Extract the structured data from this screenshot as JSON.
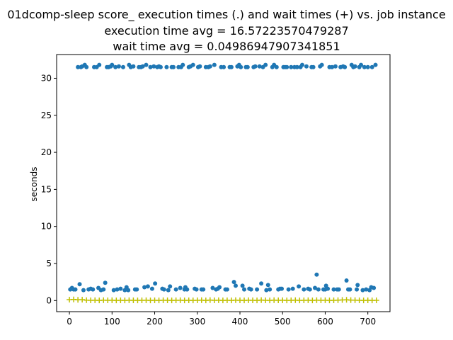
{
  "chart_data": {
    "type": "scatter",
    "title_lines": [
      "01dcomp-sleep score_ execution times (.) and wait times (+) vs. job instance",
      "execution time avg = 16.57223570479287",
      "wait time avg = 0.04986947907341851"
    ],
    "xlabel": "",
    "ylabel": "seconds",
    "xlim": [
      -30,
      752
    ],
    "ylim": [
      -1.5,
      33.2
    ],
    "xticks": [
      0,
      100,
      200,
      300,
      400,
      500,
      600,
      700
    ],
    "yticks": [
      0,
      5,
      10,
      15,
      20,
      25,
      30
    ],
    "grid": false,
    "legend": "none",
    "series": [
      {
        "marker": "dot",
        "color": "#1f77b4",
        "points": [
          [
            2,
            1.5
          ],
          [
            6,
            1.7
          ],
          [
            10,
            1.5
          ],
          [
            14,
            1.5
          ],
          [
            20,
            31.5
          ],
          [
            24,
            2.2
          ],
          [
            27,
            31.5
          ],
          [
            30,
            31.6
          ],
          [
            33,
            1.4
          ],
          [
            36,
            31.8
          ],
          [
            40,
            31.5
          ],
          [
            45,
            1.5
          ],
          [
            50,
            1.6
          ],
          [
            55,
            1.5
          ],
          [
            58,
            31.5
          ],
          [
            64,
            31.5
          ],
          [
            68,
            1.7
          ],
          [
            70,
            31.8
          ],
          [
            74,
            1.4
          ],
          [
            80,
            1.5
          ],
          [
            84,
            2.4
          ],
          [
            88,
            31.5
          ],
          [
            92,
            31.5
          ],
          [
            97,
            31.6
          ],
          [
            100,
            31.8
          ],
          [
            104,
            1.4
          ],
          [
            108,
            31.5
          ],
          [
            112,
            1.5
          ],
          [
            116,
            31.6
          ],
          [
            120,
            1.6
          ],
          [
            126,
            31.5
          ],
          [
            130,
            1.4
          ],
          [
            134,
            1.8
          ],
          [
            138,
            1.4
          ],
          [
            140,
            31.8
          ],
          [
            144,
            31.5
          ],
          [
            150,
            31.6
          ],
          [
            154,
            1.5
          ],
          [
            158,
            1.5
          ],
          [
            163,
            31.5
          ],
          [
            168,
            31.5
          ],
          [
            172,
            31.6
          ],
          [
            176,
            1.8
          ],
          [
            180,
            31.8
          ],
          [
            184,
            1.9
          ],
          [
            190,
            31.5
          ],
          [
            194,
            1.6
          ],
          [
            198,
            31.6
          ],
          [
            201,
            2.3
          ],
          [
            206,
            31.5
          ],
          [
            210,
            31.6
          ],
          [
            214,
            31.5
          ],
          [
            218,
            1.6
          ],
          [
            222,
            1.5
          ],
          [
            228,
            31.5
          ],
          [
            232,
            1.4
          ],
          [
            236,
            1.9
          ],
          [
            240,
            31.5
          ],
          [
            244,
            31.5
          ],
          [
            250,
            1.5
          ],
          [
            256,
            31.5
          ],
          [
            260,
            1.7
          ],
          [
            262,
            31.5
          ],
          [
            266,
            31.8
          ],
          [
            270,
            1.5
          ],
          [
            272,
            1.8
          ],
          [
            276,
            1.5
          ],
          [
            280,
            31.5
          ],
          [
            284,
            31.6
          ],
          [
            290,
            31.8
          ],
          [
            294,
            1.6
          ],
          [
            298,
            1.5
          ],
          [
            302,
            31.5
          ],
          [
            306,
            31.6
          ],
          [
            310,
            1.5
          ],
          [
            314,
            1.5
          ],
          [
            320,
            31.5
          ],
          [
            326,
            31.5
          ],
          [
            330,
            31.6
          ],
          [
            336,
            1.7
          ],
          [
            340,
            31.8
          ],
          [
            344,
            1.5
          ],
          [
            348,
            1.6
          ],
          [
            352,
            1.8
          ],
          [
            356,
            31.5
          ],
          [
            362,
            31.5
          ],
          [
            366,
            1.5
          ],
          [
            370,
            1.5
          ],
          [
            376,
            31.5
          ],
          [
            380,
            31.5
          ],
          [
            386,
            2.5
          ],
          [
            390,
            2.0
          ],
          [
            394,
            31.6
          ],
          [
            398,
            31.8
          ],
          [
            402,
            31.5
          ],
          [
            406,
            2.0
          ],
          [
            410,
            1.5
          ],
          [
            414,
            31.5
          ],
          [
            418,
            31.5
          ],
          [
            422,
            1.6
          ],
          [
            426,
            1.5
          ],
          [
            432,
            31.5
          ],
          [
            436,
            31.6
          ],
          [
            440,
            1.5
          ],
          [
            446,
            31.6
          ],
          [
            450,
            2.3
          ],
          [
            454,
            31.5
          ],
          [
            460,
            31.8
          ],
          [
            462,
            1.4
          ],
          [
            466,
            2.1
          ],
          [
            470,
            1.5
          ],
          [
            476,
            31.5
          ],
          [
            480,
            31.8
          ],
          [
            486,
            31.5
          ],
          [
            490,
            1.5
          ],
          [
            494,
            1.6
          ],
          [
            498,
            1.6
          ],
          [
            502,
            31.5
          ],
          [
            506,
            31.5
          ],
          [
            510,
            31.5
          ],
          [
            514,
            1.5
          ],
          [
            520,
            31.5
          ],
          [
            524,
            1.6
          ],
          [
            528,
            31.5
          ],
          [
            534,
            31.5
          ],
          [
            538,
            1.9
          ],
          [
            542,
            31.5
          ],
          [
            546,
            31.8
          ],
          [
            550,
            1.5
          ],
          [
            556,
            31.6
          ],
          [
            560,
            1.6
          ],
          [
            564,
            1.5
          ],
          [
            568,
            31.5
          ],
          [
            572,
            31.5
          ],
          [
            576,
            1.7
          ],
          [
            580,
            3.5
          ],
          [
            584,
            1.5
          ],
          [
            588,
            31.6
          ],
          [
            592,
            31.8
          ],
          [
            596,
            1.5
          ],
          [
            600,
            1.5
          ],
          [
            602,
            2.0
          ],
          [
            606,
            1.6
          ],
          [
            610,
            31.5
          ],
          [
            616,
            31.5
          ],
          [
            620,
            1.5
          ],
          [
            624,
            31.6
          ],
          [
            628,
            1.5
          ],
          [
            632,
            1.5
          ],
          [
            636,
            31.5
          ],
          [
            642,
            31.6
          ],
          [
            646,
            31.5
          ],
          [
            650,
            2.7
          ],
          [
            654,
            1.5
          ],
          [
            658,
            1.5
          ],
          [
            662,
            31.8
          ],
          [
            666,
            31.5
          ],
          [
            670,
            31.6
          ],
          [
            674,
            1.5
          ],
          [
            676,
            2.1
          ],
          [
            680,
            31.5
          ],
          [
            684,
            31.8
          ],
          [
            688,
            1.4
          ],
          [
            692,
            31.5
          ],
          [
            696,
            1.5
          ],
          [
            700,
            31.5
          ],
          [
            704,
            1.4
          ],
          [
            708,
            1.8
          ],
          [
            710,
            31.5
          ],
          [
            714,
            1.7
          ],
          [
            718,
            31.8
          ]
        ]
      },
      {
        "marker": "plus",
        "color": "#bfbf00",
        "points": [
          [
            0,
            0.12
          ],
          [
            10,
            0.15
          ],
          [
            20,
            0.1
          ],
          [
            30,
            0.12
          ],
          [
            40,
            0.05
          ],
          [
            50,
            0.03
          ],
          [
            60,
            0.04
          ],
          [
            70,
            0.02
          ],
          [
            80,
            0.05
          ],
          [
            90,
            0.03
          ],
          [
            100,
            0.04
          ],
          [
            110,
            0.02
          ],
          [
            120,
            0.03
          ],
          [
            130,
            0.02
          ],
          [
            140,
            0.04
          ],
          [
            150,
            0.03
          ],
          [
            160,
            0.02
          ],
          [
            170,
            0.03
          ],
          [
            180,
            0.04
          ],
          [
            190,
            0.02
          ],
          [
            200,
            0.03
          ],
          [
            210,
            0.02
          ],
          [
            220,
            0.04
          ],
          [
            230,
            0.03
          ],
          [
            240,
            0.02
          ],
          [
            250,
            0.03
          ],
          [
            260,
            0.04
          ],
          [
            270,
            0.02
          ],
          [
            280,
            0.03
          ],
          [
            290,
            0.02
          ],
          [
            300,
            0.03
          ],
          [
            310,
            0.05
          ],
          [
            320,
            0.02
          ],
          [
            330,
            0.06
          ],
          [
            340,
            0.03
          ],
          [
            350,
            0.04
          ],
          [
            360,
            0.02
          ],
          [
            370,
            0.03
          ],
          [
            380,
            0.02
          ],
          [
            390,
            0.05
          ],
          [
            400,
            0.03
          ],
          [
            410,
            0.02
          ],
          [
            420,
            0.04
          ],
          [
            430,
            0.03
          ],
          [
            440,
            0.02
          ],
          [
            450,
            0.06
          ],
          [
            460,
            0.03
          ],
          [
            470,
            0.02
          ],
          [
            480,
            0.05
          ],
          [
            490,
            0.03
          ],
          [
            500,
            0.04
          ],
          [
            510,
            0.02
          ],
          [
            520,
            0.03
          ],
          [
            530,
            0.05
          ],
          [
            540,
            0.02
          ],
          [
            550,
            0.03
          ],
          [
            560,
            0.04
          ],
          [
            570,
            0.02
          ],
          [
            580,
            0.05
          ],
          [
            590,
            0.03
          ],
          [
            600,
            0.04
          ],
          [
            610,
            0.02
          ],
          [
            620,
            0.03
          ],
          [
            630,
            0.05
          ],
          [
            640,
            0.08
          ],
          [
            650,
            0.1
          ],
          [
            660,
            0.06
          ],
          [
            670,
            0.05
          ],
          [
            680,
            0.03
          ],
          [
            690,
            0.02
          ],
          [
            700,
            0.03
          ],
          [
            710,
            0.02
          ],
          [
            720,
            0.03
          ]
        ]
      }
    ]
  }
}
